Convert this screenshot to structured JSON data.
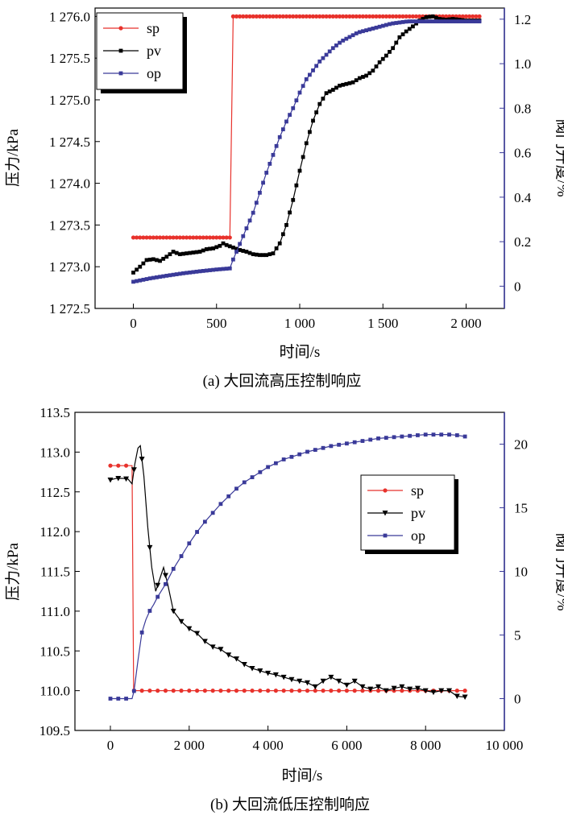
{
  "chart_data": [
    {
      "id": "a",
      "type": "line",
      "caption": "(a) 大回流高压控制响应",
      "xlabel": "时间/s",
      "ylabel": "压力/kPa",
      "y2label": "阀门开度/%",
      "xlim": [
        -230,
        2230
      ],
      "ylim": [
        1272.5,
        1276.1
      ],
      "y2lim": [
        -0.1,
        1.25
      ],
      "xticks": [
        0,
        500,
        1000,
        1500,
        2000
      ],
      "xtick_labels": [
        "0",
        "500",
        "1 000",
        "1 500",
        "2 000"
      ],
      "yticks": [
        1272.5,
        1273.0,
        1273.5,
        1274.0,
        1274.5,
        1275.0,
        1275.5,
        1276.0
      ],
      "ytick_labels": [
        "1 272.5",
        "1 273.0",
        "1 273.5",
        "1 274.0",
        "1 274.5",
        "1 275.0",
        "1 275.5",
        "1 276.0"
      ],
      "y2ticks": [
        0,
        0.2,
        0.4,
        0.6,
        0.8,
        1.0,
        1.2
      ],
      "y2tick_labels": [
        "0",
        "0.2",
        "0.4",
        "0.6",
        "0.8",
        "1.0",
        "1.2"
      ],
      "grid": false,
      "legend_position": "top-left",
      "series": [
        {
          "name": "sp",
          "axis": "left",
          "color": "#e8322c",
          "marker": "circle",
          "points": [
            [
              0,
              1273.35
            ],
            [
              580,
              1273.35
            ],
            [
              600,
              1276.0
            ],
            [
              2080,
              1276.0
            ]
          ]
        },
        {
          "name": "pv",
          "axis": "left",
          "color": "#000000",
          "marker": "square",
          "points": [
            [
              0,
              1272.93
            ],
            [
              40,
              1273.0
            ],
            [
              80,
              1273.08
            ],
            [
              120,
              1273.09
            ],
            [
              160,
              1273.07
            ],
            [
              200,
              1273.12
            ],
            [
              240,
              1273.18
            ],
            [
              280,
              1273.15
            ],
            [
              320,
              1273.16
            ],
            [
              360,
              1273.17
            ],
            [
              400,
              1273.18
            ],
            [
              440,
              1273.21
            ],
            [
              480,
              1273.22
            ],
            [
              520,
              1273.25
            ],
            [
              540,
              1273.28
            ],
            [
              560,
              1273.26
            ],
            [
              600,
              1273.23
            ],
            [
              640,
              1273.2
            ],
            [
              680,
              1273.18
            ],
            [
              720,
              1273.15
            ],
            [
              760,
              1273.14
            ],
            [
              800,
              1273.14
            ],
            [
              840,
              1273.16
            ],
            [
              880,
              1273.28
            ],
            [
              920,
              1273.5
            ],
            [
              960,
              1273.8
            ],
            [
              1000,
              1274.15
            ],
            [
              1040,
              1274.48
            ],
            [
              1080,
              1274.75
            ],
            [
              1120,
              1274.95
            ],
            [
              1160,
              1275.08
            ],
            [
              1200,
              1275.12
            ],
            [
              1240,
              1275.17
            ],
            [
              1280,
              1275.19
            ],
            [
              1320,
              1275.21
            ],
            [
              1360,
              1275.26
            ],
            [
              1400,
              1275.29
            ],
            [
              1440,
              1275.35
            ],
            [
              1480,
              1275.45
            ],
            [
              1520,
              1275.53
            ],
            [
              1560,
              1275.62
            ],
            [
              1600,
              1275.75
            ],
            [
              1640,
              1275.82
            ],
            [
              1680,
              1275.88
            ],
            [
              1720,
              1275.95
            ],
            [
              1760,
              1275.99
            ],
            [
              1800,
              1276.0
            ],
            [
              1840,
              1275.97
            ],
            [
              1880,
              1275.96
            ],
            [
              1920,
              1275.97
            ],
            [
              1960,
              1275.96
            ],
            [
              2000,
              1275.95
            ],
            [
              2040,
              1275.95
            ],
            [
              2080,
              1275.95
            ]
          ]
        },
        {
          "name": "op",
          "axis": "right",
          "color": "#3a3a99",
          "marker": "square",
          "points": [
            [
              0,
              0.02
            ],
            [
              100,
              0.035
            ],
            [
              200,
              0.047
            ],
            [
              300,
              0.058
            ],
            [
              400,
              0.067
            ],
            [
              500,
              0.075
            ],
            [
              580,
              0.08
            ],
            [
              600,
              0.12
            ],
            [
              640,
              0.19
            ],
            [
              680,
              0.26
            ],
            [
              720,
              0.33
            ],
            [
              760,
              0.42
            ],
            [
              800,
              0.51
            ],
            [
              840,
              0.59
            ],
            [
              880,
              0.67
            ],
            [
              920,
              0.74
            ],
            [
              960,
              0.8
            ],
            [
              1000,
              0.87
            ],
            [
              1040,
              0.93
            ],
            [
              1080,
              0.97
            ],
            [
              1120,
              1.01
            ],
            [
              1160,
              1.04
            ],
            [
              1200,
              1.07
            ],
            [
              1250,
              1.1
            ],
            [
              1300,
              1.12
            ],
            [
              1350,
              1.14
            ],
            [
              1400,
              1.15
            ],
            [
              1450,
              1.16
            ],
            [
              1500,
              1.17
            ],
            [
              1550,
              1.18
            ],
            [
              1600,
              1.185
            ],
            [
              1650,
              1.19
            ],
            [
              1700,
              1.19
            ],
            [
              1800,
              1.19
            ],
            [
              1900,
              1.19
            ],
            [
              2000,
              1.19
            ],
            [
              2080,
              1.19
            ]
          ]
        }
      ]
    },
    {
      "id": "b",
      "type": "line",
      "caption": "(b) 大回流低压控制响应",
      "xlabel": "时间/s",
      "ylabel": "压力/kPa",
      "y2label": "阀门开度/%",
      "xlim": [
        -900,
        10000
      ],
      "ylim": [
        109.5,
        113.5
      ],
      "y2lim": [
        -2.5,
        22.5
      ],
      "xticks": [
        0,
        2000,
        4000,
        6000,
        8000,
        10000
      ],
      "xtick_labels": [
        "0",
        "2 000",
        "4 000",
        "6 000",
        "8 000",
        "10 000"
      ],
      "yticks": [
        109.5,
        110.0,
        110.5,
        111.0,
        111.5,
        112.0,
        112.5,
        113.0,
        113.5
      ],
      "ytick_labels": [
        "109.5",
        "110.0",
        "110.5",
        "111.0",
        "111.5",
        "112.0",
        "112.5",
        "113.0",
        "113.5"
      ],
      "y2ticks": [
        0,
        5,
        10,
        15,
        20
      ],
      "y2tick_labels": [
        "0",
        "5",
        "10",
        "15",
        "20"
      ],
      "grid": false,
      "legend_position": "top-right",
      "series": [
        {
          "name": "sp",
          "axis": "left",
          "color": "#e8322c",
          "marker": "circle",
          "points": [
            [
              0,
              112.83
            ],
            [
              550,
              112.83
            ],
            [
              590,
              110.0
            ],
            [
              9000,
              110.0
            ]
          ]
        },
        {
          "name": "pv",
          "axis": "left",
          "color": "#000000",
          "marker": "triangle-down",
          "points": [
            [
              0,
              112.65
            ],
            [
              150,
              112.67
            ],
            [
              300,
              112.67
            ],
            [
              450,
              112.66
            ],
            [
              550,
              112.6
            ],
            [
              620,
              112.85
            ],
            [
              700,
              113.05
            ],
            [
              760,
              113.08
            ],
            [
              850,
              112.7
            ],
            [
              950,
              112.05
            ],
            [
              1050,
              111.55
            ],
            [
              1150,
              111.25
            ],
            [
              1250,
              111.4
            ],
            [
              1350,
              111.55
            ],
            [
              1450,
              111.35
            ],
            [
              1600,
              111.0
            ],
            [
              1800,
              110.87
            ],
            [
              2000,
              110.78
            ],
            [
              2200,
              110.72
            ],
            [
              2400,
              110.62
            ],
            [
              2600,
              110.55
            ],
            [
              2800,
              110.52
            ],
            [
              3000,
              110.45
            ],
            [
              3200,
              110.4
            ],
            [
              3400,
              110.33
            ],
            [
              3600,
              110.28
            ],
            [
              3800,
              110.25
            ],
            [
              4000,
              110.22
            ],
            [
              4200,
              110.2
            ],
            [
              4400,
              110.17
            ],
            [
              4600,
              110.14
            ],
            [
              4800,
              110.12
            ],
            [
              5000,
              110.1
            ],
            [
              5200,
              110.05
            ],
            [
              5400,
              110.12
            ],
            [
              5600,
              110.17
            ],
            [
              5800,
              110.12
            ],
            [
              6000,
              110.07
            ],
            [
              6200,
              110.12
            ],
            [
              6400,
              110.05
            ],
            [
              6600,
              110.02
            ],
            [
              6800,
              110.05
            ],
            [
              7000,
              110.0
            ],
            [
              7200,
              110.03
            ],
            [
              7400,
              110.05
            ],
            [
              7600,
              110.02
            ],
            [
              7800,
              110.03
            ],
            [
              8000,
              110.0
            ],
            [
              8200,
              109.98
            ],
            [
              8400,
              110.0
            ],
            [
              8600,
              110.0
            ],
            [
              8800,
              109.93
            ],
            [
              9000,
              109.92
            ]
          ]
        },
        {
          "name": "op",
          "axis": "right",
          "color": "#3a3a99",
          "marker": "square",
          "points": [
            [
              0,
              0
            ],
            [
              200,
              0
            ],
            [
              400,
              0
            ],
            [
              550,
              0
            ],
            [
              600,
              0.6
            ],
            [
              700,
              3.0
            ],
            [
              800,
              5.2
            ],
            [
              900,
              6.2
            ],
            [
              1000,
              6.9
            ],
            [
              1100,
              7.4
            ],
            [
              1200,
              8.0
            ],
            [
              1400,
              9.0
            ],
            [
              1600,
              10.2
            ],
            [
              1800,
              11.2
            ],
            [
              2000,
              12.2
            ],
            [
              2200,
              13.1
            ],
            [
              2400,
              13.9
            ],
            [
              2600,
              14.6
            ],
            [
              2800,
              15.3
            ],
            [
              3000,
              15.9
            ],
            [
              3200,
              16.5
            ],
            [
              3400,
              17.0
            ],
            [
              3600,
              17.4
            ],
            [
              3800,
              17.8
            ],
            [
              4000,
              18.2
            ],
            [
              4200,
              18.5
            ],
            [
              4400,
              18.8
            ],
            [
              4600,
              19.0
            ],
            [
              4800,
              19.2
            ],
            [
              5000,
              19.4
            ],
            [
              5200,
              19.55
            ],
            [
              5400,
              19.7
            ],
            [
              5600,
              19.85
            ],
            [
              5800,
              19.95
            ],
            [
              6000,
              20.05
            ],
            [
              6200,
              20.15
            ],
            [
              6400,
              20.25
            ],
            [
              6600,
              20.35
            ],
            [
              6800,
              20.45
            ],
            [
              7000,
              20.5
            ],
            [
              7200,
              20.55
            ],
            [
              7400,
              20.6
            ],
            [
              7600,
              20.65
            ],
            [
              7800,
              20.7
            ],
            [
              8000,
              20.75
            ],
            [
              8200,
              20.75
            ],
            [
              8400,
              20.75
            ],
            [
              8600,
              20.75
            ],
            [
              8800,
              20.7
            ],
            [
              9000,
              20.6
            ]
          ]
        }
      ]
    }
  ]
}
